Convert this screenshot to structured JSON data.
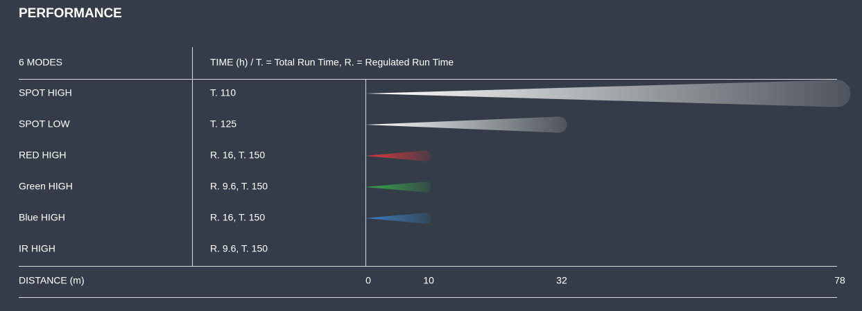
{
  "chart_data": {
    "type": "beam",
    "title": "PERFORMANCE",
    "col1_header": "6 MODES",
    "col2_header": "TIME (h) / T. = Total Run Time, R. = Regulated Run Time",
    "x_label": "DISTANCE (m)",
    "categories": [
      "SPOT HIGH",
      "SPOT LOW",
      "RED HIGH",
      "Green HIGH",
      "Blue HIGH",
      "IR HIGH"
    ],
    "time_labels": [
      "T. 110",
      "T. 125",
      "R. 16, T. 150",
      "R. 9.6, T. 150",
      "R. 16, T. 150",
      "R. 9.6, T. 150"
    ],
    "values": [
      78,
      32,
      10,
      10,
      10,
      null
    ],
    "colors": [
      "#ffffff",
      "#ffffff",
      "#e0383c",
      "#3aa84c",
      "#3a80c4",
      null
    ],
    "xlim": [
      0,
      78
    ],
    "xticks": [
      0,
      10,
      32,
      78
    ]
  }
}
